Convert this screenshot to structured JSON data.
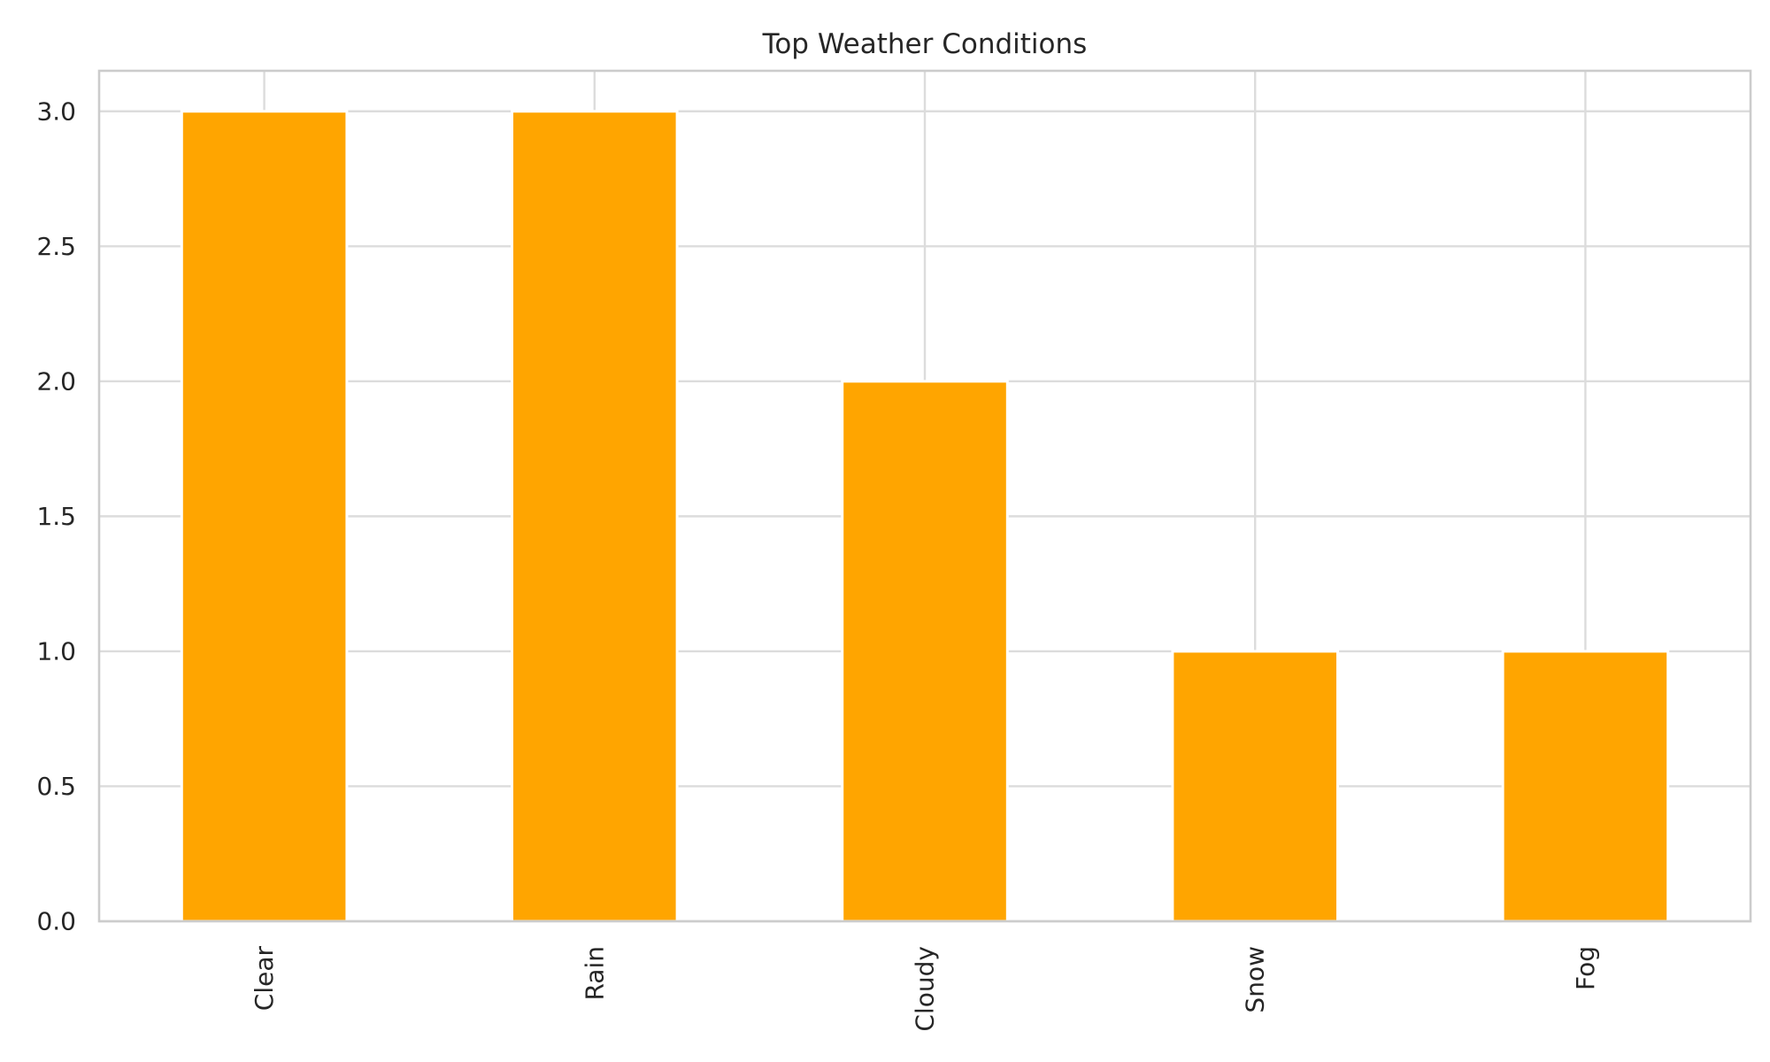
{
  "chart_data": {
    "type": "bar",
    "title": "Top Weather Conditions",
    "xlabel": "",
    "ylabel": "",
    "categories": [
      "Clear",
      "Rain",
      "Cloudy",
      "Snow",
      "Fog"
    ],
    "values": [
      3,
      3,
      2,
      1,
      1
    ],
    "ylim": [
      0,
      3.15
    ],
    "yticks": [
      0.0,
      0.5,
      1.0,
      1.5,
      2.0,
      2.5,
      3.0
    ],
    "ytick_labels": [
      "0.0",
      "0.5",
      "1.0",
      "1.5",
      "2.0",
      "2.5",
      "3.0"
    ],
    "x_tick_rotation": "vertical",
    "grid": true,
    "bar_color": "#FFA500",
    "grid_color": "#DCDCDC",
    "frame_color": "#CCCCCC",
    "text_color": "#262626"
  }
}
